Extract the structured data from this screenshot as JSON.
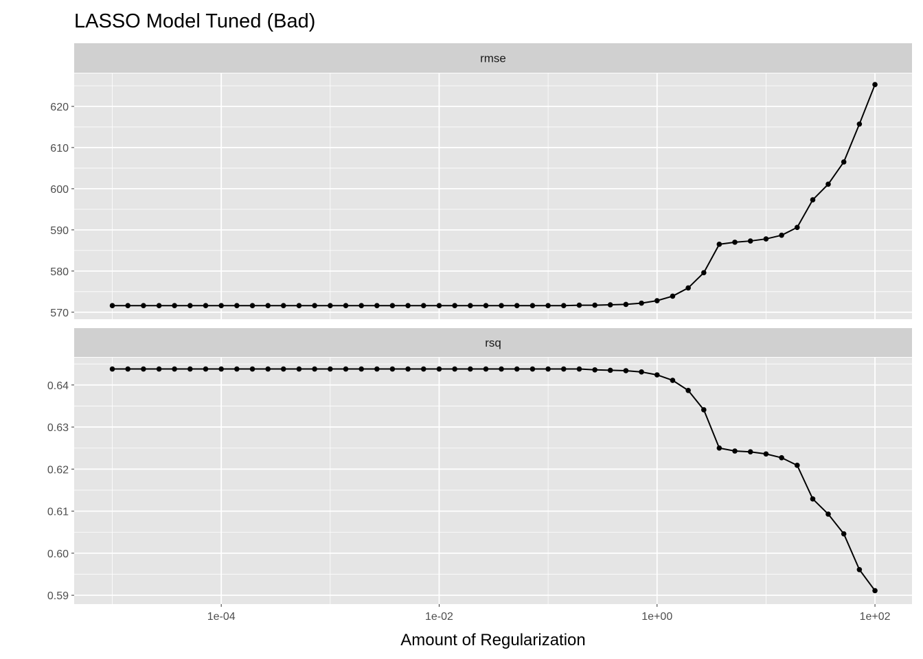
{
  "chart_data": {
    "type": "line",
    "title": "LASSO Model Tuned (Bad)",
    "xlabel": "Amount of Regularization",
    "ylabel": "",
    "x_scale": "log10",
    "x_log10": [
      -5,
      -4.857,
      -4.714,
      -4.571,
      -4.429,
      -4.286,
      -4.143,
      -4,
      -3.857,
      -3.714,
      -3.571,
      -3.429,
      -3.286,
      -3.143,
      -3,
      -2.857,
      -2.714,
      -2.571,
      -2.429,
      -2.286,
      -2.143,
      -2,
      -1.857,
      -1.714,
      -1.571,
      -1.429,
      -1.286,
      -1.143,
      -1,
      -0.857,
      -0.714,
      -0.571,
      -0.429,
      -0.286,
      -0.143,
      0,
      0.143,
      0.286,
      0.429,
      0.571,
      0.714,
      0.857,
      1,
      1.143,
      1.286,
      1.429,
      1.571,
      1.714,
      1.857,
      2
    ],
    "xlim_log10": [
      -5.35,
      2.34
    ],
    "x_ticks": [
      {
        "v": -4,
        "label": "1e-04"
      },
      {
        "v": -2,
        "label": "1e-02"
      },
      {
        "v": 0,
        "label": "1e+00"
      },
      {
        "v": 2,
        "label": "1e+02"
      }
    ],
    "x_minor": [
      -5,
      -3,
      -1,
      1
    ],
    "grid": true,
    "legend": "none",
    "panels": [
      {
        "name": "rmse",
        "ylim": [
          568.3,
          628
        ],
        "y_ticks": [
          {
            "v": 570,
            "label": "570"
          },
          {
            "v": 580,
            "label": "580"
          },
          {
            "v": 590,
            "label": "590"
          },
          {
            "v": 600,
            "label": "600"
          },
          {
            "v": 610,
            "label": "610"
          },
          {
            "v": 620,
            "label": "620"
          }
        ],
        "values": [
          571.6,
          571.6,
          571.6,
          571.6,
          571.6,
          571.6,
          571.6,
          571.6,
          571.6,
          571.6,
          571.6,
          571.6,
          571.6,
          571.6,
          571.6,
          571.6,
          571.6,
          571.6,
          571.6,
          571.6,
          571.6,
          571.6,
          571.6,
          571.6,
          571.6,
          571.6,
          571.6,
          571.6,
          571.6,
          571.6,
          571.7,
          571.7,
          571.8,
          571.9,
          572.2,
          572.8,
          573.9,
          575.9,
          579.6,
          586.5,
          587.0,
          587.3,
          587.8,
          588.7,
          590.6,
          597.3,
          601.1,
          606.5,
          615.7,
          625.3
        ]
      },
      {
        "name": "rsq",
        "ylim": [
          0.5879,
          0.6465
        ],
        "y_ticks": [
          {
            "v": 0.59,
            "label": "0.59"
          },
          {
            "v": 0.6,
            "label": "0.60"
          },
          {
            "v": 0.61,
            "label": "0.61"
          },
          {
            "v": 0.62,
            "label": "0.62"
          },
          {
            "v": 0.63,
            "label": "0.63"
          },
          {
            "v": 0.64,
            "label": "0.64"
          }
        ],
        "values": [
          0.6438,
          0.6438,
          0.6438,
          0.6438,
          0.6438,
          0.6438,
          0.6438,
          0.6438,
          0.6438,
          0.6438,
          0.6438,
          0.6438,
          0.6438,
          0.6438,
          0.6438,
          0.6438,
          0.6438,
          0.6438,
          0.6438,
          0.6438,
          0.6438,
          0.6438,
          0.6438,
          0.6438,
          0.6438,
          0.6438,
          0.6438,
          0.6438,
          0.6438,
          0.6438,
          0.6438,
          0.6436,
          0.6435,
          0.6434,
          0.6431,
          0.6424,
          0.6411,
          0.6387,
          0.6341,
          0.625,
          0.6243,
          0.6241,
          0.6236,
          0.6227,
          0.6209,
          0.6129,
          0.6093,
          0.6046,
          0.5961,
          0.5911
        ]
      }
    ],
    "colors": {
      "panel_bg": "#e5e5e5",
      "strip_bg": "#d0d0d0",
      "grid": "#ffffff",
      "line": "#000000"
    }
  }
}
